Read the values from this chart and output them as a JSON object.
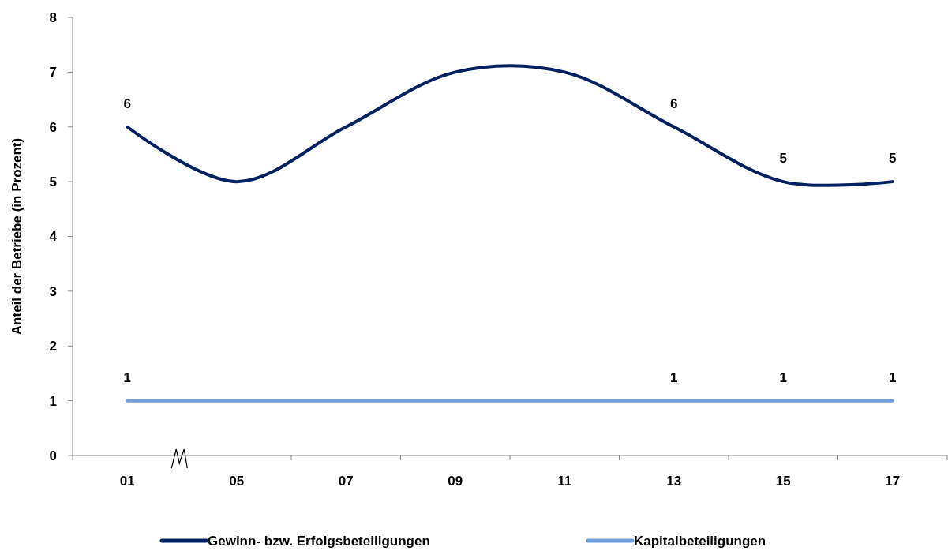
{
  "chart_data": {
    "type": "line",
    "ylabel": "Anteil der Betriebe (in Prozent)",
    "categories": [
      "01",
      "05",
      "07",
      "09",
      "11",
      "13",
      "15",
      "17"
    ],
    "ylim": [
      0,
      8
    ],
    "yticks": [
      0,
      1,
      2,
      3,
      4,
      5,
      6,
      7,
      8
    ],
    "grid": false,
    "legend": "bottom",
    "marker": "none",
    "line_style": "solid",
    "series": [
      {
        "name": "Gewinn- bzw. Erfolgsbeteiligungen",
        "color": "#002060",
        "values": [
          6,
          5,
          6,
          7,
          7,
          6,
          5,
          5
        ],
        "value_labels": [
          "6",
          null,
          null,
          null,
          null,
          "6",
          "5",
          "5"
        ]
      },
      {
        "name": "Kapitalbeteiligungen",
        "color": "#6f9fd8",
        "values": [
          1,
          1,
          1,
          1,
          1,
          1,
          1,
          1
        ],
        "value_labels": [
          "1",
          null,
          null,
          null,
          null,
          "1",
          "1",
          "1"
        ]
      }
    ]
  }
}
